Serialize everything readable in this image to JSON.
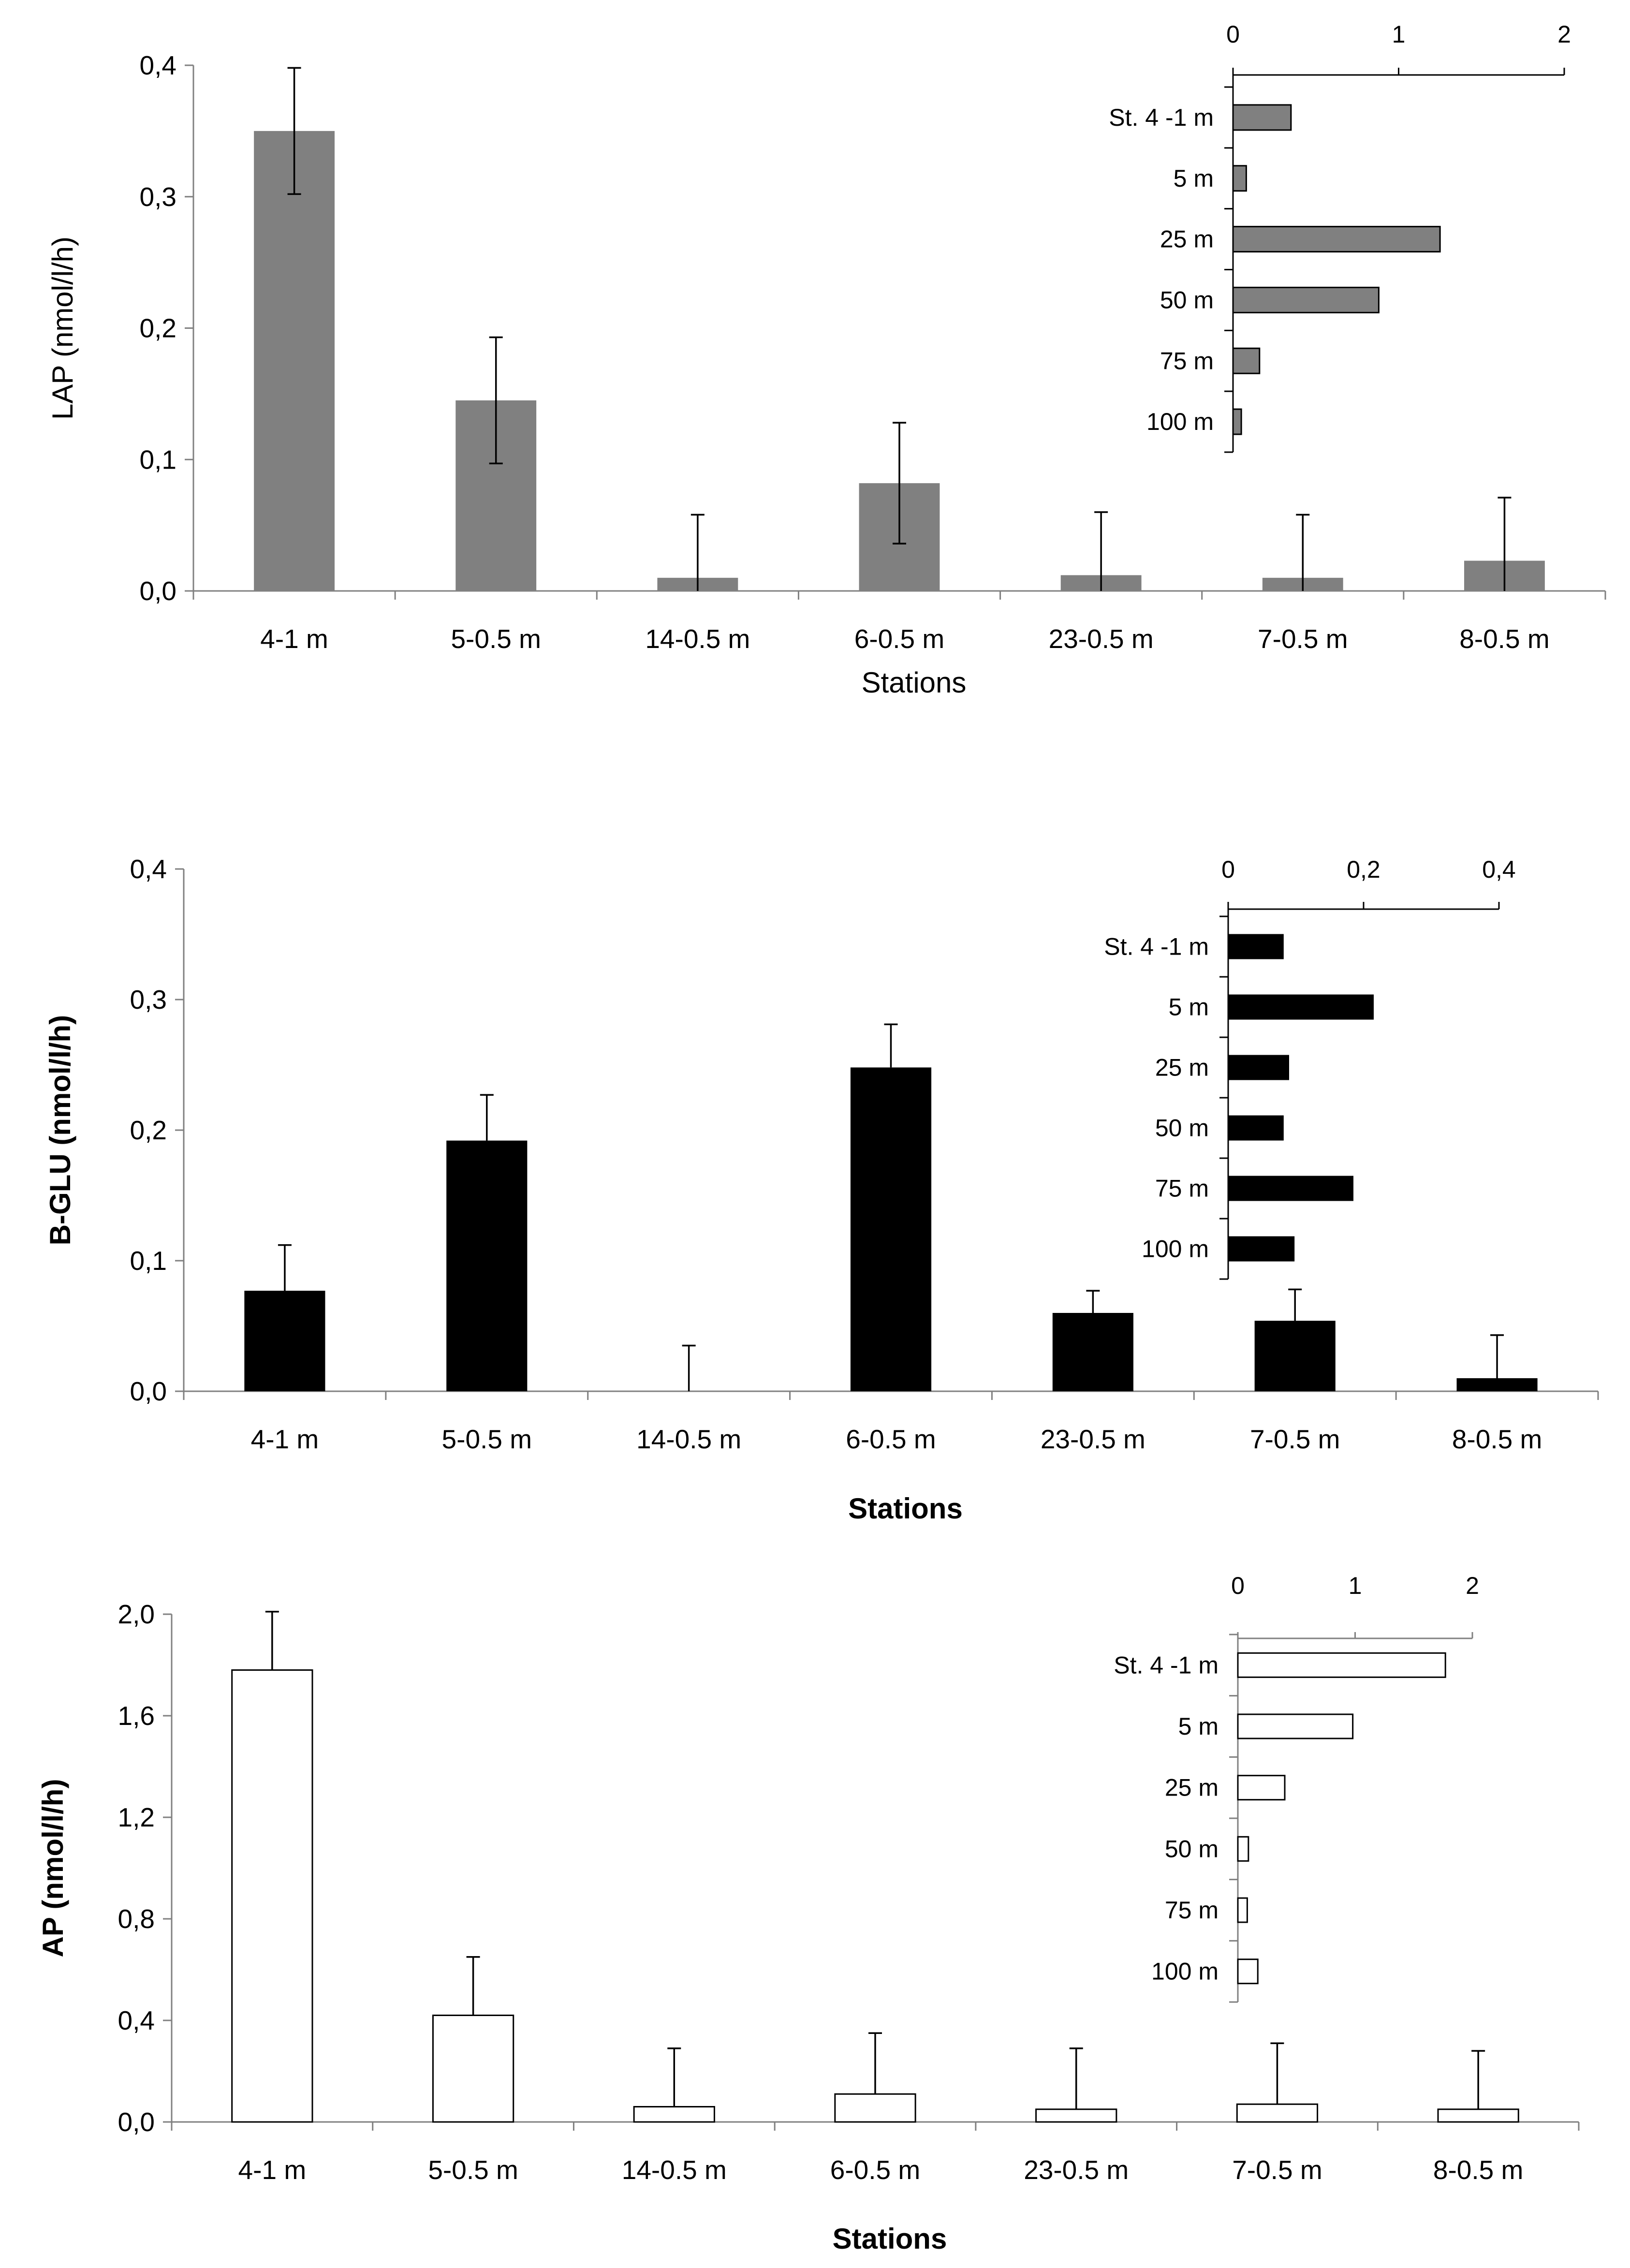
{
  "chart_data": [
    {
      "type": "bar",
      "title": "",
      "xlabel": "Stations",
      "ylabel": "LAP (nmol/l/h)",
      "label_weight": "normal",
      "categories": [
        "4-1 m",
        "5-0.5 m",
        "14-0.5 m",
        "6-0.5 m",
        "23-0.5 m",
        "7-0.5 m",
        "8-0.5 m"
      ],
      "values": [
        0.35,
        0.145,
        0.01,
        0.082,
        0.012,
        0.01,
        0.023
      ],
      "errors": [
        0.048,
        0.048,
        0.048,
        0.046,
        0.048,
        0.048,
        0.048
      ],
      "error_style": "both",
      "ylim": [
        0,
        0.4
      ],
      "yticks": [
        "0,0",
        "0,1",
        "0,2",
        "0,3",
        "0,4"
      ],
      "bar_color": "#808080",
      "inset": {
        "type": "bar-horizontal",
        "categories": [
          "St. 4 -1 m",
          "5 m",
          "25 m",
          "50 m",
          "75 m",
          "100 m"
        ],
        "values": [
          0.35,
          0.08,
          1.25,
          0.88,
          0.16,
          0.05
        ],
        "xlim": [
          0,
          2
        ],
        "xticks": [
          "0",
          "1",
          "2"
        ],
        "bar_color": "#808080"
      }
    },
    {
      "type": "bar",
      "title": "",
      "xlabel": "Stations",
      "ylabel": "B-GLU (nmol/l/h)",
      "label_weight": "bold",
      "categories": [
        "4-1 m",
        "5-0.5 m",
        "14-0.5 m",
        "6-0.5 m",
        "23-0.5 m",
        "7-0.5 m",
        "8-0.5 m"
      ],
      "values": [
        0.077,
        0.192,
        0.0,
        0.248,
        0.06,
        0.054,
        0.01
      ],
      "errors": [
        0.035,
        0.035,
        0.035,
        0.033,
        0.017,
        0.024,
        0.033
      ],
      "error_style": "up",
      "ylim": [
        0,
        0.4
      ],
      "yticks": [
        "0,0",
        "0,1",
        "0,2",
        "0,3",
        "0,4"
      ],
      "bar_color": "#000000",
      "inset": {
        "type": "bar-horizontal",
        "categories": [
          "St. 4 -1 m",
          "5 m",
          "25 m",
          "50 m",
          "75 m",
          "100 m"
        ],
        "values": [
          0.082,
          0.215,
          0.09,
          0.082,
          0.185,
          0.098
        ],
        "xlim": [
          0,
          0.4
        ],
        "xticks": [
          "0",
          "0,2",
          "0,4"
        ],
        "bar_color": "#000000"
      }
    },
    {
      "type": "bar",
      "title": "",
      "xlabel": "Stations",
      "ylabel": "AP (nmol/l/h)",
      "label_weight": "bold",
      "categories": [
        "4-1 m",
        "5-0.5 m",
        "14-0.5 m",
        "6-0.5 m",
        "23-0.5 m",
        "7-0.5 m",
        "8-0.5 m"
      ],
      "values": [
        1.78,
        0.42,
        0.06,
        0.11,
        0.05,
        0.07,
        0.05
      ],
      "errors": [
        0.23,
        0.23,
        0.23,
        0.24,
        0.24,
        0.24,
        0.23
      ],
      "error_style": "up",
      "ylim": [
        0,
        2
      ],
      "yticks": [
        "0,0",
        "0,4",
        "0,8",
        "1,2",
        "1,6",
        "2,0"
      ],
      "bar_color": "#ffffff",
      "inset": {
        "type": "bar-horizontal",
        "categories": [
          "St. 4 -1 m",
          "5 m",
          "25 m",
          "50 m",
          "75 m",
          "100 m"
        ],
        "values": [
          1.77,
          0.98,
          0.4,
          0.09,
          0.08,
          0.17
        ],
        "xlim": [
          0,
          2
        ],
        "xticks": [
          "0",
          "1",
          "2"
        ],
        "bar_color": "#ffffff"
      }
    }
  ]
}
